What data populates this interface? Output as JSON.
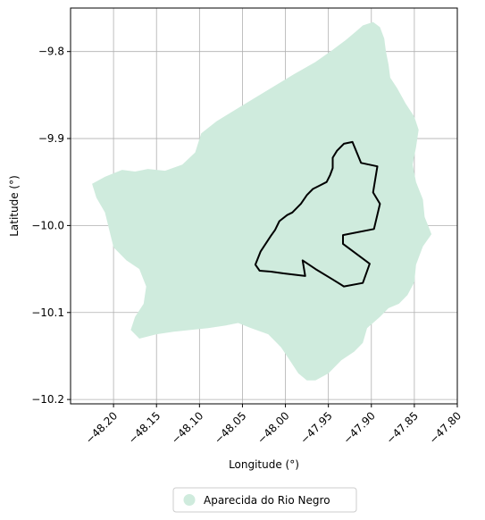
{
  "map": {
    "type": "choropleth-outline",
    "xlabel": "Longitude (°)",
    "ylabel": "Latitude (°)",
    "xlim": [
      -48.25,
      -47.8
    ],
    "ylim": [
      -10.205,
      -9.75
    ],
    "x_ticks": [
      -48.2,
      -48.15,
      -48.1,
      -48.05,
      -48.0,
      -47.95,
      -47.9,
      -47.85,
      -47.8
    ],
    "x_tick_labels": [
      "−48.20",
      "−48.15",
      "−48.10",
      "−48.05",
      "−48.00",
      "−47.95",
      "−47.90",
      "−47.85",
      "−47.80"
    ],
    "y_ticks": [
      -9.8,
      -9.9,
      -10.0,
      -10.1,
      -10.2
    ],
    "y_tick_labels": [
      "−9.8",
      "−9.9",
      "−10.0",
      "−10.1",
      "−10.2"
    ],
    "grid": true,
    "region_fill_color": "#cfebdd",
    "outline_color": "#000000",
    "legend": {
      "placement": "bottom-center",
      "entries": [
        {
          "label": "Aparecida do Rio Negro",
          "color": "#cfebdd"
        }
      ]
    },
    "region_polygon": [
      [
        -48.225,
        -9.952
      ],
      [
        -48.21,
        -9.944
      ],
      [
        -48.19,
        -9.936
      ],
      [
        -48.175,
        -9.938
      ],
      [
        -48.16,
        -9.935
      ],
      [
        -48.14,
        -9.937
      ],
      [
        -48.12,
        -9.93
      ],
      [
        -48.105,
        -9.916
      ],
      [
        -48.098,
        -9.894
      ],
      [
        -48.08,
        -9.88
      ],
      [
        -48.05,
        -9.862
      ],
      [
        -48.02,
        -9.844
      ],
      [
        -47.99,
        -9.826
      ],
      [
        -47.965,
        -9.812
      ],
      [
        -47.945,
        -9.798
      ],
      [
        -47.93,
        -9.787
      ],
      [
        -47.918,
        -9.777
      ],
      [
        -47.91,
        -9.77
      ],
      [
        -47.898,
        -9.766
      ],
      [
        -47.89,
        -9.772
      ],
      [
        -47.885,
        -9.785
      ],
      [
        -47.883,
        -9.8
      ],
      [
        -47.88,
        -9.815
      ],
      [
        -47.878,
        -9.83
      ],
      [
        -47.87,
        -9.842
      ],
      [
        -47.86,
        -9.86
      ],
      [
        -47.85,
        -9.875
      ],
      [
        -47.845,
        -9.89
      ],
      [
        -47.848,
        -9.91
      ],
      [
        -47.852,
        -9.93
      ],
      [
        -47.848,
        -9.95
      ],
      [
        -47.84,
        -9.97
      ],
      [
        -47.838,
        -9.99
      ],
      [
        -47.83,
        -10.01
      ],
      [
        -47.84,
        -10.024
      ],
      [
        -47.848,
        -10.045
      ],
      [
        -47.85,
        -10.065
      ],
      [
        -47.858,
        -10.08
      ],
      [
        -47.868,
        -10.09
      ],
      [
        -47.88,
        -10.095
      ],
      [
        -47.89,
        -10.105
      ],
      [
        -47.905,
        -10.118
      ],
      [
        -47.91,
        -10.135
      ],
      [
        -47.92,
        -10.145
      ],
      [
        -47.935,
        -10.155
      ],
      [
        -47.95,
        -10.17
      ],
      [
        -47.965,
        -10.178
      ],
      [
        -47.975,
        -10.178
      ],
      [
        -47.985,
        -10.17
      ],
      [
        -47.995,
        -10.155
      ],
      [
        -48.005,
        -10.14
      ],
      [
        -48.02,
        -10.125
      ],
      [
        -48.04,
        -10.118
      ],
      [
        -48.055,
        -10.112
      ],
      [
        -48.07,
        -10.115
      ],
      [
        -48.09,
        -10.118
      ],
      [
        -48.11,
        -10.12
      ],
      [
        -48.13,
        -10.122
      ],
      [
        -48.15,
        -10.125
      ],
      [
        -48.17,
        -10.13
      ],
      [
        -48.18,
        -10.12
      ],
      [
        -48.175,
        -10.105
      ],
      [
        -48.165,
        -10.09
      ],
      [
        -48.162,
        -10.07
      ],
      [
        -48.17,
        -10.05
      ],
      [
        -48.185,
        -10.04
      ],
      [
        -48.2,
        -10.025
      ],
      [
        -48.205,
        -10.005
      ],
      [
        -48.21,
        -9.985
      ],
      [
        -48.22,
        -9.968
      ]
    ],
    "outline_polygon": [
      [
        -47.922,
        -9.904
      ],
      [
        -47.912,
        -9.928
      ],
      [
        -47.893,
        -9.932
      ],
      [
        -47.898,
        -9.962
      ],
      [
        -47.89,
        -9.975
      ],
      [
        -47.897,
        -10.004
      ],
      [
        -47.933,
        -10.011
      ],
      [
        -47.933,
        -10.021
      ],
      [
        -47.902,
        -10.044
      ],
      [
        -47.91,
        -10.066
      ],
      [
        -47.932,
        -10.07
      ],
      [
        -47.945,
        -10.062
      ],
      [
        -47.965,
        -10.05
      ],
      [
        -47.98,
        -10.04
      ],
      [
        -47.977,
        -10.058
      ],
      [
        -48.002,
        -10.055
      ],
      [
        -48.017,
        -10.053
      ],
      [
        -48.03,
        -10.052
      ],
      [
        -48.035,
        -10.045
      ],
      [
        -48.029,
        -10.03
      ],
      [
        -48.017,
        -10.012
      ],
      [
        -48.012,
        -10.005
      ],
      [
        -48.007,
        -9.995
      ],
      [
        -47.998,
        -9.988
      ],
      [
        -47.992,
        -9.985
      ],
      [
        -47.982,
        -9.975
      ],
      [
        -47.975,
        -9.965
      ],
      [
        -47.968,
        -9.958
      ],
      [
        -47.96,
        -9.954
      ],
      [
        -47.952,
        -9.95
      ],
      [
        -47.948,
        -9.942
      ],
      [
        -47.945,
        -9.934
      ],
      [
        -47.945,
        -9.922
      ],
      [
        -47.94,
        -9.914
      ],
      [
        -47.932,
        -9.906
      ]
    ]
  }
}
